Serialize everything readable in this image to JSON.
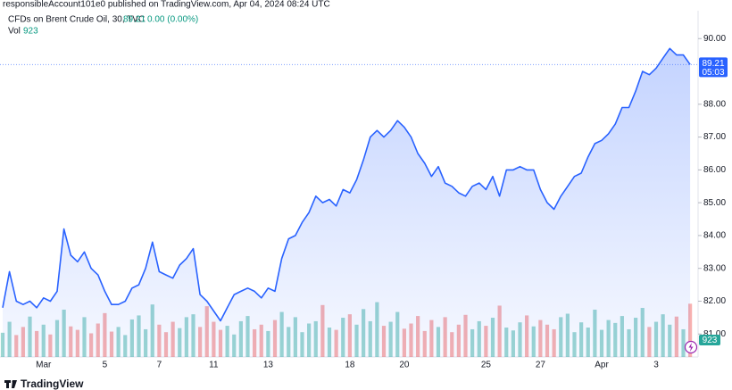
{
  "header": {
    "published": "responsibleAccount101e0 published on TradingView.com, Apr 04, 2024 08:24 UTC",
    "symbol": "CFDs on Brent Crude Oil, 30, TVC",
    "price": 89.21,
    "change": "0.00 (0.00%)",
    "vol_label": "Vol",
    "vol": 923,
    "countdown": "05:03",
    "brand": "TradingView"
  },
  "chart_data": {
    "type": "area",
    "categories": [
      null,
      null,
      null,
      null,
      null,
      null,
      "Mar",
      null,
      null,
      null,
      null,
      null,
      null,
      null,
      null,
      "5",
      null,
      null,
      null,
      null,
      null,
      null,
      null,
      "7",
      null,
      null,
      null,
      null,
      null,
      null,
      null,
      "11",
      null,
      null,
      null,
      null,
      null,
      null,
      null,
      "13",
      null,
      null,
      null,
      null,
      null,
      null,
      null,
      null,
      null,
      null,
      null,
      "18",
      null,
      null,
      null,
      null,
      null,
      null,
      null,
      "20",
      null,
      null,
      null,
      null,
      null,
      null,
      null,
      null,
      null,
      null,
      null,
      "25",
      null,
      null,
      null,
      null,
      null,
      null,
      null,
      "27",
      null,
      null,
      null,
      null,
      null,
      null,
      null,
      null,
      "Apr",
      null,
      null,
      null,
      null,
      null,
      null,
      null,
      "3",
      null,
      null,
      null,
      null,
      null
    ],
    "series": [
      {
        "color": "#2962ff",
        "values": [
          81.8,
          82.9,
          82.0,
          81.9,
          82.0,
          81.8,
          82.1,
          82.0,
          82.3,
          84.2,
          83.4,
          83.2,
          83.5,
          83.0,
          82.8,
          82.3,
          81.9,
          81.9,
          82.0,
          82.4,
          82.5,
          83.0,
          83.8,
          82.9,
          82.8,
          82.7,
          83.1,
          83.3,
          83.6,
          82.2,
          82.0,
          81.7,
          81.4,
          81.8,
          82.2,
          82.3,
          82.4,
          82.3,
          82.1,
          82.4,
          82.3,
          83.3,
          83.9,
          84.0,
          84.4,
          84.7,
          85.2,
          85.0,
          85.1,
          84.9,
          85.4,
          85.3,
          85.7,
          86.3,
          87.0,
          87.2,
          87.0,
          87.2,
          87.5,
          87.3,
          87.0,
          86.5,
          86.2,
          85.8,
          86.1,
          85.6,
          85.5,
          85.3,
          85.2,
          85.5,
          85.6,
          85.4,
          85.8,
          85.2,
          86.0,
          86.0,
          86.1,
          86.0,
          86.0,
          85.4,
          85.0,
          84.8,
          85.2,
          85.5,
          85.8,
          85.9,
          86.4,
          86.8,
          86.9,
          87.1,
          87.4,
          87.9,
          87.9,
          88.4,
          89.0,
          88.9,
          89.1,
          89.4,
          89.7,
          89.5,
          89.5,
          89.21
        ]
      },
      {
        "type": "bar",
        "axis": "y2",
        "color": "#26a69a",
        "up_color": "#26a69a",
        "down_color": "#ef5350",
        "values": [
          420,
          610,
          380,
          520,
          700,
          450,
          560,
          390,
          640,
          820,
          530,
          470,
          690,
          410,
          580,
          760,
          440,
          520,
          380,
          650,
          720,
          480,
          910,
          560,
          430,
          610,
          500,
          690,
          740,
          520,
          880,
          610,
          470,
          540,
          390,
          620,
          710,
          480,
          560,
          450,
          640,
          780,
          520,
          690,
          430,
          580,
          620,
          900,
          510,
          470,
          680,
          740,
          560,
          830,
          620,
          950,
          540,
          610,
          780,
          490,
          580,
          710,
          450,
          640,
          520,
          690,
          430,
          560,
          730,
          480,
          620,
          540,
          680,
          890,
          510,
          460,
          600,
          720,
          530,
          640,
          560,
          480,
          690,
          750,
          430,
          600,
          510,
          820,
          470,
          640,
          590,
          710,
          480,
          680,
          850,
          520,
          610,
          740,
          560,
          700,
          480,
          923
        ]
      }
    ],
    "ylim": [
      80.3,
      90.85
    ],
    "yticks": [
      {
        "value": 81,
        "label": "81.00"
      },
      {
        "value": 82,
        "label": "82.00"
      },
      {
        "value": 83,
        "label": "83.00"
      },
      {
        "value": 84,
        "label": "84.00"
      },
      {
        "value": 85,
        "label": "85.00"
      },
      {
        "value": 86,
        "label": "86.00"
      },
      {
        "value": 87,
        "label": "87.00"
      },
      {
        "value": 88,
        "label": "88.00"
      },
      {
        "value": 90,
        "label": "90.00"
      }
    ],
    "y2lim": [
      0,
      6000
    ],
    "grid": false
  }
}
